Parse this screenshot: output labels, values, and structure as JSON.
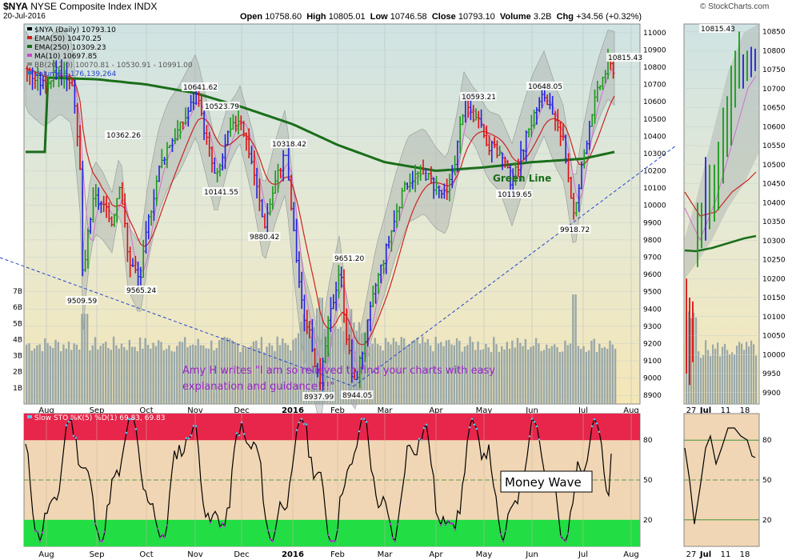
{
  "header": {
    "symbol": "$NYA",
    "name": "NYSE Composite Index",
    "exchange": "INDX",
    "date": "20-Jul-2016",
    "open_label": "Open",
    "open": "10758.60",
    "high_label": "High",
    "high": "10805.01",
    "low_label": "Low",
    "low": "10746.58",
    "close_label": "Close",
    "close": "10793.10",
    "volume_label": "Volume",
    "volume": "3.2B",
    "chg_label": "Chg",
    "chg": "+34.56 (+0.32%)",
    "watermark": "© StockCharts.com"
  },
  "legend": [
    {
      "text": "$NYA (Daily) 10793.10",
      "color": "#000000"
    },
    {
      "text": "EMA(50) 10470.25",
      "color": "#cc2222"
    },
    {
      "text": "EMA(250) 10309.23",
      "color": "#1a6e1a"
    },
    {
      "text": "MA(10) 10697.85",
      "color": "#cc44cc"
    },
    {
      "text": "BB(20,2.0) 10070.81 - 10530.91 - 10991.00",
      "color": "#888888"
    },
    {
      "text": "Volume 3,176,139,264",
      "color": "#2277cc"
    }
  ],
  "annotations": {
    "green_line": "Green Line",
    "quote_line1": "Amy H writes \"I am so relieved to find your charts with easy",
    "quote_line2": "explanation and guidance!!!\"",
    "money_wave": "Money Wave",
    "sto_label": "Slow STO %K(5) %D(1) 69.83, 69.83"
  },
  "colors": {
    "up_bar": "#1a9a1a",
    "down_bar": "#dd1111",
    "neutral_bar": "#2222dd",
    "ema50": "#cc2222",
    "ema250": "#1a6e1a",
    "ma10": "#d070d0",
    "volume": "#9aa8a8",
    "overbought": "#e8254a",
    "oversold": "#22dd44",
    "trendline": "#2244cc"
  },
  "chart_data": [
    {
      "type": "line",
      "title": "$NYA (Daily) 10793.10",
      "x_axis_labels": [
        "Aug",
        "Sep",
        "Oct",
        "Nov",
        "Dec",
        "2016",
        "Feb",
        "Mar",
        "Apr",
        "May",
        "Jun",
        "Jul",
        "Aug"
      ],
      "y_ticks": [
        8900,
        9000,
        9100,
        9200,
        9300,
        9400,
        9500,
        9600,
        9700,
        9800,
        9900,
        10000,
        10100,
        10200,
        10300,
        10400,
        10500,
        10600,
        10700,
        10800,
        10900,
        11000
      ],
      "ylim": [
        8850,
        11050
      ],
      "volume_ticks": [
        "1B",
        "2B",
        "3B",
        "4B",
        "5B",
        "6B",
        "7B"
      ],
      "price_labels": [
        "10641.62",
        "10523.79",
        "10362.26",
        "10318.42",
        "10141.55",
        "9880.42",
        "9565.24",
        "9509.59",
        "9651.20",
        "8937.99",
        "8944.05",
        "10593.21",
        "10648.05",
        "10119.65",
        "9918.72",
        "10815.43"
      ],
      "series": [
        {
          "name": "$NYA (Daily)",
          "x": [
            "Aug",
            "Sep",
            "Oct",
            "Nov",
            "Dec",
            "2016",
            "Feb",
            "Mar",
            "Apr",
            "May",
            "Jun",
            "Jul",
            "20-Jul"
          ],
          "values": [
            10720,
            9509.59,
            10362.26,
            10641.62,
            10141.55,
            9880.42,
            8937.99,
            9651.2,
            10250,
            10593.21,
            10648.05,
            9918.72,
            10793.1
          ]
        },
        {
          "name": "EMA(50)",
          "x": [
            "Aug",
            "Sep",
            "Oct",
            "Nov",
            "Dec",
            "2016",
            "Feb",
            "Mar",
            "Apr",
            "May",
            "Jun",
            "Jul",
            "20-Jul"
          ],
          "values": [
            10780,
            10400,
            10240,
            10380,
            10300,
            10050,
            9500,
            9650,
            10100,
            10300,
            10330,
            10300,
            10470.25
          ]
        },
        {
          "name": "EMA(250)",
          "x": [
            "Aug",
            "Sep",
            "Oct",
            "Nov",
            "Dec",
            "2016",
            "Feb",
            "Mar",
            "Apr",
            "May",
            "Jun",
            "Jul",
            "20-Jul"
          ],
          "values": [
            10740,
            10730,
            10700,
            10650,
            10570,
            10470,
            10350,
            10250,
            10200,
            10220,
            10250,
            10270,
            10309.23
          ]
        }
      ]
    },
    {
      "type": "line",
      "title": "Slow STO %K(5) %D(1) 69.83, 69.83",
      "y_ticks": [
        20,
        50,
        80
      ],
      "ylim": [
        0,
        100
      ],
      "zones": {
        "overbought": 80,
        "oversold": 20
      },
      "last_value": 69.83
    },
    {
      "type": "line",
      "title": "$NYA detail",
      "x_axis_labels": [
        "27",
        "Jul",
        "11",
        "18"
      ],
      "y_ticks": [
        9900,
        9950,
        10000,
        10050,
        10100,
        10150,
        10200,
        10250,
        10300,
        10350,
        10400,
        10450,
        10500,
        10550,
        10600,
        10650,
        10700,
        10750,
        10800,
        10850
      ],
      "price_labels": [
        "10815.43"
      ],
      "sto_ticks": [
        20,
        50,
        80
      ]
    }
  ]
}
